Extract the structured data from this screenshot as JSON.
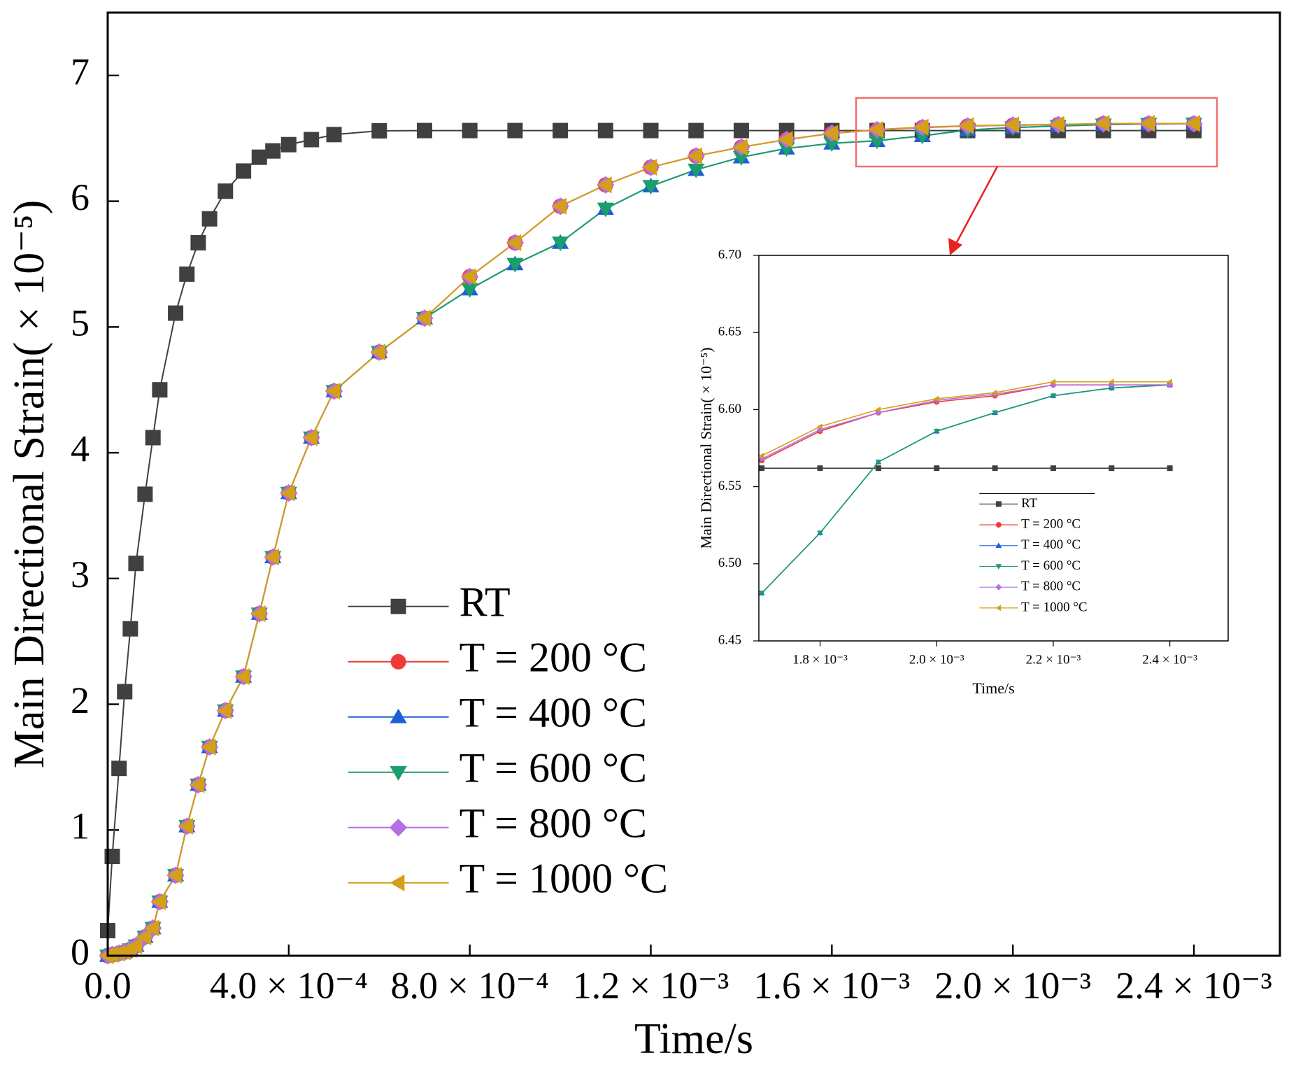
{
  "chart_data": [
    {
      "type": "line",
      "xlabel": "Time/s",
      "ylabel": "Main Directional Strain( × 10⁻⁵)",
      "xlim": [
        0,
        0.00259
      ],
      "ylim": [
        0,
        7.5
      ],
      "xticks": [
        {
          "value": 0,
          "label": "0.0"
        },
        {
          "value": 0.0004,
          "label": "4.0 × 10⁻⁴"
        },
        {
          "value": 0.0008,
          "label": "8.0 × 10⁻⁴"
        },
        {
          "value": 0.0012,
          "label": "1.2 × 10⁻³"
        },
        {
          "value": 0.0016,
          "label": "1.6 × 10⁻³"
        },
        {
          "value": 0.002,
          "label": "2.0 × 10⁻³"
        },
        {
          "value": 0.0024,
          "label": "2.4 × 10⁻³"
        }
      ],
      "yticks": [
        0,
        1,
        2,
        3,
        4,
        5,
        6,
        7
      ],
      "legend": "lower left",
      "x": [
        0,
        1e-05,
        2.5e-05,
        3.75e-05,
        5e-05,
        6.25e-05,
        8.25e-05,
        0.0001,
        0.000115,
        0.00015,
        0.000175,
        0.0002,
        0.000225,
        0.00026,
        0.0003,
        0.000335,
        0.000365,
        0.0004,
        0.00045,
        0.0005,
        0.0006,
        0.0007,
        0.0008,
        0.0009,
        0.001,
        0.0011,
        0.0012,
        0.0013,
        0.0014,
        0.0015,
        0.0016,
        0.0017,
        0.0018,
        0.0019,
        0.002,
        0.0021,
        0.0022,
        0.0023,
        0.0024
      ],
      "series": [
        {
          "name": "RT",
          "color": "#404040",
          "marker": "square",
          "values": [
            0.2,
            0.79,
            1.49,
            2.1,
            2.6,
            3.12,
            3.67,
            4.12,
            4.5,
            5.11,
            5.42,
            5.67,
            5.86,
            6.08,
            6.24,
            6.35,
            6.4,
            6.45,
            6.49,
            6.53,
            6.56,
            6.562,
            6.562,
            6.562,
            6.562,
            6.562,
            6.562,
            6.562,
            6.562,
            6.562,
            6.562,
            6.562,
            6.562,
            6.562,
            6.562,
            6.562,
            6.562,
            6.562,
            6.562
          ]
        },
        {
          "name": "T = 200 °C",
          "color": "#f03a3a",
          "marker": "circle",
          "values": [
            0,
            0.01,
            0.02,
            0.03,
            0.05,
            0.08,
            0.15,
            0.22,
            0.43,
            0.64,
            1.03,
            1.36,
            1.66,
            1.95,
            2.22,
            2.72,
            3.17,
            3.68,
            4.12,
            4.49,
            4.8,
            5.07,
            5.4,
            5.67,
            5.96,
            6.13,
            6.27,
            6.36,
            6.43,
            6.49,
            6.54,
            6.567,
            6.586,
            6.598,
            6.605,
            6.609,
            6.616,
            6.616,
            6.616
          ]
        },
        {
          "name": "T = 400 °C",
          "color": "#1f5fd6",
          "marker": "triangle-up",
          "values": [
            0,
            0.01,
            0.02,
            0.03,
            0.05,
            0.08,
            0.15,
            0.22,
            0.43,
            0.64,
            1.03,
            1.36,
            1.66,
            1.95,
            2.22,
            2.72,
            3.17,
            3.68,
            4.12,
            4.49,
            4.8,
            5.07,
            5.3,
            5.5,
            5.67,
            5.94,
            6.12,
            6.25,
            6.35,
            6.42,
            6.46,
            6.481,
            6.52,
            6.566,
            6.586,
            6.598,
            6.609,
            6.614,
            6.616
          ]
        },
        {
          "name": "T = 600 °C",
          "color": "#1a9e6a",
          "marker": "triangle-down",
          "values": [
            0,
            0.01,
            0.02,
            0.03,
            0.05,
            0.08,
            0.15,
            0.22,
            0.43,
            0.64,
            1.03,
            1.36,
            1.66,
            1.95,
            2.22,
            2.72,
            3.17,
            3.68,
            4.12,
            4.49,
            4.8,
            5.07,
            5.3,
            5.5,
            5.67,
            5.94,
            6.12,
            6.25,
            6.35,
            6.42,
            6.46,
            6.481,
            6.52,
            6.566,
            6.586,
            6.598,
            6.609,
            6.614,
            6.616
          ]
        },
        {
          "name": "T = 800 °C",
          "color": "#b46ee6",
          "marker": "diamond",
          "values": [
            0,
            0.01,
            0.02,
            0.03,
            0.05,
            0.08,
            0.15,
            0.22,
            0.43,
            0.64,
            1.03,
            1.36,
            1.66,
            1.95,
            2.22,
            2.72,
            3.17,
            3.68,
            4.12,
            4.49,
            4.8,
            5.07,
            5.4,
            5.67,
            5.96,
            6.13,
            6.27,
            6.36,
            6.43,
            6.49,
            6.54,
            6.568,
            6.587,
            6.598,
            6.606,
            6.61,
            6.616,
            6.616,
            6.616
          ]
        },
        {
          "name": "T = 1000 °C",
          "color": "#d4a017",
          "marker": "triangle-left",
          "values": [
            0,
            0.01,
            0.02,
            0.03,
            0.05,
            0.08,
            0.15,
            0.22,
            0.43,
            0.64,
            1.03,
            1.36,
            1.66,
            1.95,
            2.22,
            2.72,
            3.17,
            3.68,
            4.12,
            4.49,
            4.8,
            5.07,
            5.4,
            5.67,
            5.96,
            6.13,
            6.27,
            6.36,
            6.43,
            6.49,
            6.54,
            6.57,
            6.589,
            6.6,
            6.607,
            6.611,
            6.618,
            6.618,
            6.618
          ]
        }
      ]
    },
    {
      "type": "line",
      "xlabel": "Time/s",
      "ylabel": "Main Directional Strain( × 10⁻⁵)",
      "xlim": [
        0.001695,
        0.0025
      ],
      "ylim": [
        6.45,
        6.7
      ],
      "xticks": [
        {
          "value": 0.0018,
          "label": "1.8 × 10⁻³"
        },
        {
          "value": 0.002,
          "label": "2.0 × 10⁻³"
        },
        {
          "value": 0.0022,
          "label": "2.2 × 10⁻³"
        },
        {
          "value": 0.0024,
          "label": "2.4 × 10⁻³"
        }
      ],
      "yticks": [
        6.45,
        {
          "value": 6.5,
          "label": "6.50"
        },
        6.55,
        {
          "value": 6.6,
          "label": "6.60"
        },
        6.65,
        {
          "value": 6.7,
          "label": "6.70"
        }
      ],
      "legend": "lower center",
      "x": [
        0.0017,
        0.0018,
        0.0019,
        0.002,
        0.0021,
        0.0022,
        0.0023,
        0.0024
      ],
      "series": [
        {
          "name": "RT",
          "color": "#404040",
          "marker": "square",
          "values": [
            6.562,
            6.562,
            6.562,
            6.562,
            6.562,
            6.562,
            6.562,
            6.562
          ]
        },
        {
          "name": "T = 200 °C",
          "color": "#f03a3a",
          "marker": "circle",
          "values": [
            6.567,
            6.586,
            6.598,
            6.605,
            6.609,
            6.616,
            6.616,
            6.616
          ]
        },
        {
          "name": "T = 400 °C",
          "color": "#1f5fd6",
          "marker": "triangle-up",
          "values": [
            6.481,
            6.52,
            6.566,
            6.586,
            6.598,
            6.609,
            6.614,
            6.616
          ]
        },
        {
          "name": "T = 600 °C",
          "color": "#1a9e6a",
          "marker": "triangle-down",
          "values": [
            6.481,
            6.52,
            6.566,
            6.586,
            6.598,
            6.609,
            6.614,
            6.616
          ]
        },
        {
          "name": "T = 800 °C",
          "color": "#b46ee6",
          "marker": "diamond",
          "values": [
            6.568,
            6.587,
            6.598,
            6.606,
            6.61,
            6.616,
            6.616,
            6.616
          ]
        },
        {
          "name": "T = 1000 °C",
          "color": "#d4a017",
          "marker": "triangle-left",
          "values": [
            6.57,
            6.589,
            6.6,
            6.607,
            6.611,
            6.618,
            6.618,
            6.618
          ]
        }
      ]
    }
  ]
}
